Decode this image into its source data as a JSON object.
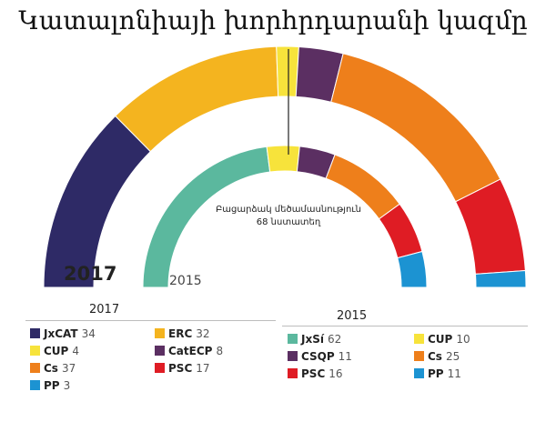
{
  "title": "Կատալոնիայի խորհրդարանի կազմը",
  "majority": {
    "label_line1": "Բացարձակ մեծամասնություն",
    "label_line2": "68 նստատեղ"
  },
  "chart_data": [
    {
      "type": "pie",
      "year": "2017",
      "year_label_in_chart": "2017",
      "legend_title": "2017",
      "series": [
        {
          "name": "JxCAT",
          "value": 34,
          "color": "#2e2a66"
        },
        {
          "name": "ERC",
          "value": 32,
          "color": "#f4b41f"
        },
        {
          "name": "CUP",
          "value": 4,
          "color": "#f7e33b"
        },
        {
          "name": "CatECP",
          "value": 8,
          "color": "#5b2f62"
        },
        {
          "name": "Cs",
          "value": 37,
          "color": "#ee7f1b"
        },
        {
          "name": "PSC",
          "value": 17,
          "color": "#df1c24"
        },
        {
          "name": "PP",
          "value": 3,
          "color": "#1c93d2"
        }
      ]
    },
    {
      "type": "pie",
      "year": "2015",
      "year_label_in_chart": "2015",
      "legend_title": "2015",
      "series": [
        {
          "name": "JxSí",
          "value": 62,
          "color": "#5bb89e"
        },
        {
          "name": "CUP",
          "value": 10,
          "color": "#f7e33b"
        },
        {
          "name": "CSQP",
          "value": 11,
          "color": "#5b2f62"
        },
        {
          "name": "Cs",
          "value": 25,
          "color": "#ee7f1b"
        },
        {
          "name": "PSC",
          "value": 16,
          "color": "#df1c24"
        },
        {
          "name": "PP",
          "value": 11,
          "color": "#1c93d2"
        }
      ]
    }
  ],
  "legend_2017": [
    {
      "name": "JxCAT",
      "value": "34",
      "color": "#2e2a66"
    },
    {
      "name": "ERC",
      "value": "32",
      "color": "#f4b41f"
    },
    {
      "name": "CUP",
      "value": "4",
      "color": "#f7e33b"
    },
    {
      "name": "CatECP",
      "value": "8",
      "color": "#5b2f62"
    },
    {
      "name": "Cs",
      "value": "37",
      "color": "#ee7f1b"
    },
    {
      "name": "PSC",
      "value": "17",
      "color": "#df1c24"
    },
    {
      "name": "PP",
      "value": "3",
      "color": "#1c93d2"
    }
  ],
  "legend_2015": [
    {
      "name": "JxSí",
      "value": "62",
      "color": "#5bb89e"
    },
    {
      "name": "CUP",
      "value": "10",
      "color": "#f7e33b"
    },
    {
      "name": "CSQP",
      "value": "11",
      "color": "#5b2f62"
    },
    {
      "name": "Cs",
      "value": "25",
      "color": "#ee7f1b"
    },
    {
      "name": "PSC",
      "value": "16",
      "color": "#df1c24"
    },
    {
      "name": "PP",
      "value": "11",
      "color": "#1c93d2"
    }
  ]
}
